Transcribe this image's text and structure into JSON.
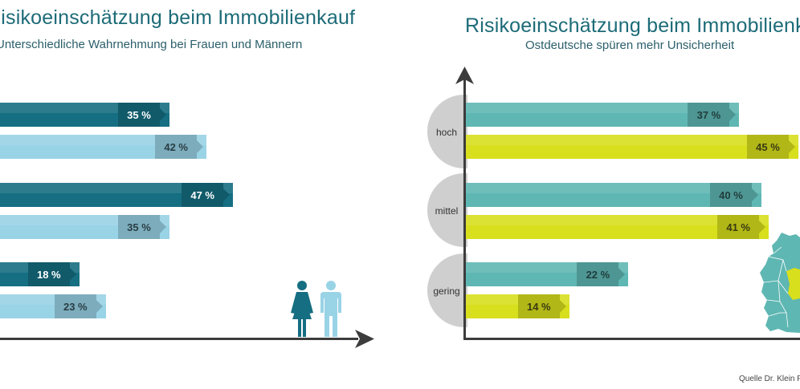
{
  "left": {
    "title": "Risikoeinschätzung beim Immobilienkauf",
    "subtitle": "Unterschiedliche Wahrnehmung bei Frauen und Männern",
    "legend_icons": [
      "woman-icon",
      "man-icon"
    ]
  },
  "right": {
    "title": "Risikoeinschätzung beim Immobilienkauf",
    "subtitle": "Ostdeutsche spüren mehr Unsicherheit",
    "map_icon": "germany-map-icon"
  },
  "source": "Quelle Dr. Klein P",
  "colors": {
    "frauen": "#156e81",
    "maenner": "#99d3e6",
    "west": "#5fb7b3",
    "ost": "#d8df1c"
  },
  "chart_data": [
    {
      "type": "bar",
      "orientation": "horizontal",
      "title": "Risikoeinschätzung beim Immobilienkauf",
      "subtitle": "Unterschiedliche Wahrnehmung bei Frauen und Männern",
      "categories": [
        "hoch",
        "mittel",
        "gering"
      ],
      "series": [
        {
          "name": "Frauen",
          "values": [
            35,
            47,
            18
          ],
          "labels": [
            "35 %",
            "47 %",
            "18 %"
          ]
        },
        {
          "name": "Männer",
          "values": [
            42,
            35,
            23
          ],
          "labels": [
            "42 %",
            "35 %",
            "23 %"
          ]
        }
      ],
      "xlim": [
        0,
        50
      ]
    },
    {
      "type": "bar",
      "orientation": "horizontal",
      "title": "Risikoeinschätzung beim Immobilienkauf",
      "subtitle": "Ostdeutsche spüren mehr Unsicherheit",
      "categories": [
        "hoch",
        "mittel",
        "gering"
      ],
      "series": [
        {
          "name": "Westdeutschland",
          "values": [
            37,
            40,
            22
          ],
          "labels": [
            "37 %",
            "40 %",
            "22 %"
          ]
        },
        {
          "name": "Ostdeutschland",
          "values": [
            45,
            41,
            14
          ],
          "labels": [
            "45 %",
            "41 %",
            "14 %"
          ]
        }
      ],
      "xlim": [
        0,
        50
      ]
    }
  ]
}
